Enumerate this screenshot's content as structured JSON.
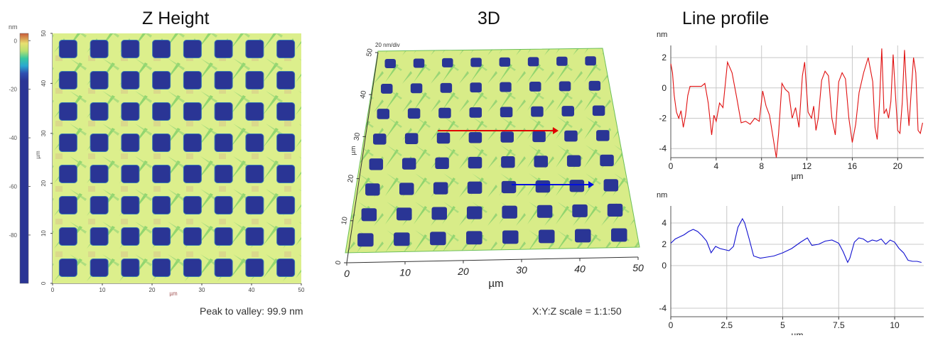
{
  "panels": {
    "zheight_title": "Z Height",
    "view3d_title": "3D",
    "profile_title": "Line profile"
  },
  "zheight": {
    "colorbar_unit": "nm",
    "colorbar_ticks": [
      0,
      -20,
      -40,
      -60,
      -80
    ],
    "colorbar_range": [
      -99.9,
      3
    ],
    "x_label": "µm",
    "y_label": "µm",
    "x_ticks": [
      0,
      10,
      20,
      30,
      40,
      50
    ],
    "y_ticks": [
      0,
      10,
      20,
      30,
      40,
      50
    ],
    "grid_rows": 8,
    "grid_cols": 8,
    "well_color": "#2a3595",
    "surface_color": "#dff08a",
    "note": "Peak to valley: 99.9 nm"
  },
  "view3d": {
    "z_scale_label": "20 nm/div",
    "x_label": "µm",
    "y_label": "µm",
    "x_ticks": [
      0,
      10,
      20,
      30,
      40,
      50
    ],
    "y_ticks": [
      0,
      10,
      20,
      30,
      40,
      50
    ],
    "note": "X:Y:Z scale = 1:1:50",
    "arrow_colors": [
      "#e00000",
      "#0010e0"
    ]
  },
  "chart_data": [
    {
      "type": "line",
      "color": "#e01010",
      "ylabel": "nm",
      "xlabel": "µm",
      "xlim": [
        0,
        22.3
      ],
      "ylim": [
        -4.6,
        2.8
      ],
      "xticks": [
        0,
        4,
        8,
        12,
        16,
        20
      ],
      "yticks": [
        2,
        0,
        -2,
        -4
      ],
      "x": [
        0,
        0.15,
        0.3,
        0.5,
        0.7,
        0.9,
        1.1,
        1.3,
        1.5,
        1.7,
        2.0,
        2.3,
        2.7,
        3.0,
        3.3,
        3.6,
        3.8,
        4.0,
        4.3,
        4.6,
        5.0,
        5.4,
        5.8,
        6.2,
        6.6,
        7.0,
        7.4,
        7.8,
        8.1,
        8.4,
        8.7,
        9.0,
        9.3,
        9.5,
        9.8,
        10.1,
        10.4,
        10.7,
        11.0,
        11.3,
        11.6,
        11.8,
        12.1,
        12.4,
        12.6,
        12.8,
        13.0,
        13.3,
        13.6,
        13.9,
        14.2,
        14.5,
        14.8,
        15.1,
        15.4,
        15.7,
        16.0,
        16.3,
        16.6,
        17.0,
        17.4,
        17.8,
        18.0,
        18.2,
        18.4,
        18.6,
        18.8,
        19.0,
        19.2,
        19.4,
        19.6,
        19.8,
        20.0,
        20.2,
        20.4,
        20.6,
        20.8,
        21.0,
        21.2,
        21.4,
        21.6,
        21.8,
        22.0,
        22.2
      ],
      "y": [
        1.6,
        1.0,
        -0.5,
        -1.6,
        -2.0,
        -1.5,
        -2.6,
        -1.8,
        -0.5,
        0.1,
        0.1,
        0.1,
        0.1,
        0.3,
        -1.0,
        -3.1,
        -1.8,
        -2.2,
        -1.0,
        -1.3,
        1.7,
        1.0,
        -0.6,
        -2.3,
        -2.2,
        -2.4,
        -2.0,
        -2.2,
        -0.2,
        -1.2,
        -1.8,
        -3.2,
        -4.6,
        -3.0,
        0.3,
        -0.1,
        -0.3,
        -2.0,
        -1.3,
        -2.6,
        0.8,
        1.7,
        -1.6,
        -2.0,
        -1.2,
        -2.8,
        -2.0,
        0.5,
        1.1,
        0.8,
        -2.0,
        -3.1,
        0.4,
        1.0,
        0.6,
        -2.0,
        -3.6,
        -2.4,
        -0.3,
        1.0,
        2.0,
        0.4,
        -2.6,
        -3.4,
        -1.0,
        2.6,
        -1.7,
        -1.4,
        -2.0,
        -0.9,
        2.2,
        -0.4,
        -2.8,
        -3.0,
        -1.0,
        2.5,
        -0.5,
        -2.5,
        -0.2,
        2.0,
        1.0,
        -2.8,
        -3.0,
        -2.3
      ]
    },
    {
      "type": "line",
      "color": "#1010d0",
      "ylabel": "nm",
      "xlabel": "µm",
      "xlim": [
        0,
        11.3
      ],
      "ylim": [
        -4.8,
        5.6
      ],
      "xticks": [
        0,
        2.5,
        5,
        7.5,
        10
      ],
      "xtick_labels": [
        "0",
        "2.5",
        "5",
        "7.5",
        "10"
      ],
      "yticks": [
        4,
        2,
        0,
        -4
      ],
      "x": [
        0,
        0.2,
        0.4,
        0.6,
        0.8,
        1.0,
        1.2,
        1.4,
        1.6,
        1.8,
        2.0,
        2.2,
        2.4,
        2.6,
        2.8,
        3.0,
        3.2,
        3.3,
        3.5,
        3.7,
        4.0,
        4.3,
        4.6,
        5.0,
        5.4,
        5.8,
        6.1,
        6.3,
        6.6,
        6.9,
        7.2,
        7.5,
        7.7,
        7.9,
        8.0,
        8.2,
        8.4,
        8.6,
        8.8,
        9.0,
        9.2,
        9.4,
        9.6,
        9.8,
        10.0,
        10.2,
        10.4,
        10.6,
        10.8,
        11.0,
        11.2
      ],
      "y": [
        2.1,
        2.5,
        2.7,
        2.9,
        3.2,
        3.4,
        3.2,
        2.8,
        2.3,
        1.2,
        1.8,
        1.6,
        1.5,
        1.4,
        1.8,
        3.6,
        4.4,
        4.0,
        2.5,
        0.9,
        0.7,
        0.8,
        0.9,
        1.2,
        1.6,
        2.2,
        2.6,
        1.9,
        2.0,
        2.3,
        2.4,
        2.1,
        1.3,
        0.3,
        0.7,
        2.2,
        2.6,
        2.5,
        2.2,
        2.4,
        2.3,
        2.5,
        2.0,
        2.4,
        2.2,
        1.6,
        1.2,
        0.5,
        0.4,
        0.4,
        0.3
      ]
    }
  ]
}
